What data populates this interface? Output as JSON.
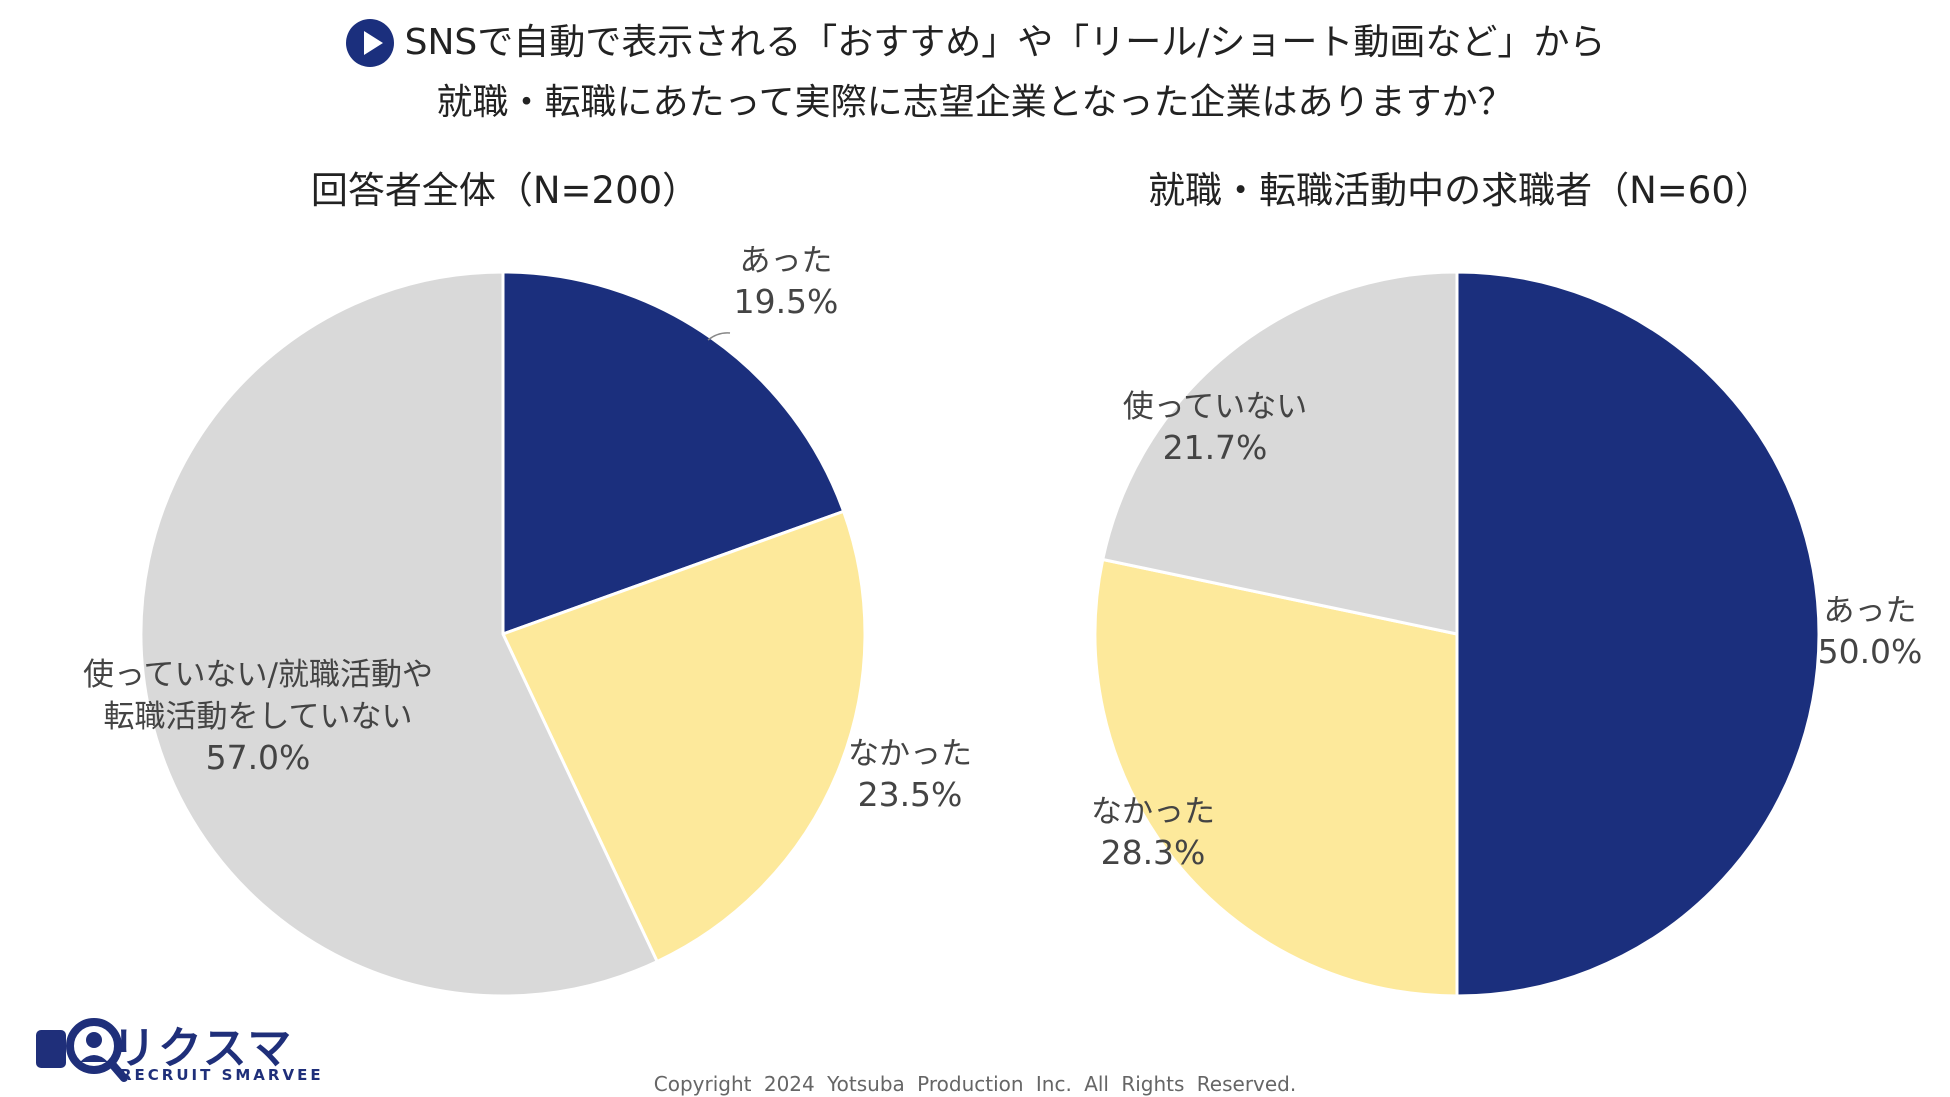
{
  "header": {
    "line1": "SNSで自動で表示される「おすすめ」や「リール/ショート動画など」から",
    "line2": "就職・転職にあたって実際に志望企業となった企業はありますか？"
  },
  "colors": {
    "navy": "#1b2f7d",
    "yellow": "#fde99b",
    "gray": "#d9d9d9"
  },
  "chart_data": [
    {
      "type": "pie",
      "title": "回答者全体（N=200）",
      "slices": [
        {
          "label": "あった",
          "value": 19.5,
          "display": "19.5%",
          "color": "#1b2f7d"
        },
        {
          "label": "なかった",
          "value": 23.5,
          "display": "23.5%",
          "color": "#fde99b"
        },
        {
          "label": "使っていない/就職活動や転職活動をしていない",
          "label_lines": [
            "使っていない/就職活動や",
            "転職活動をしていない"
          ],
          "value": 57.0,
          "display": "57.0%",
          "color": "#d9d9d9"
        }
      ],
      "start": "12 o'clock",
      "direction": "clockwise"
    },
    {
      "type": "pie",
      "title": "就職・転職活動中の求職者（N=60）",
      "slices": [
        {
          "label": "あった",
          "value": 50.0,
          "display": "50.0%",
          "color": "#1b2f7d"
        },
        {
          "label": "なかった",
          "value": 28.3,
          "display": "28.3%",
          "color": "#fde99b"
        },
        {
          "label": "使っていない",
          "value": 21.7,
          "display": "21.7%",
          "color": "#d9d9d9"
        }
      ],
      "start": "12 o'clock",
      "direction": "clockwise"
    }
  ],
  "footer": {
    "logo_main": "リクスマ",
    "logo_sub": "RECRUIT SMARVEE",
    "copyright": "Copyright 2024 Yotsuba Production Inc. All Rights Reserved."
  }
}
